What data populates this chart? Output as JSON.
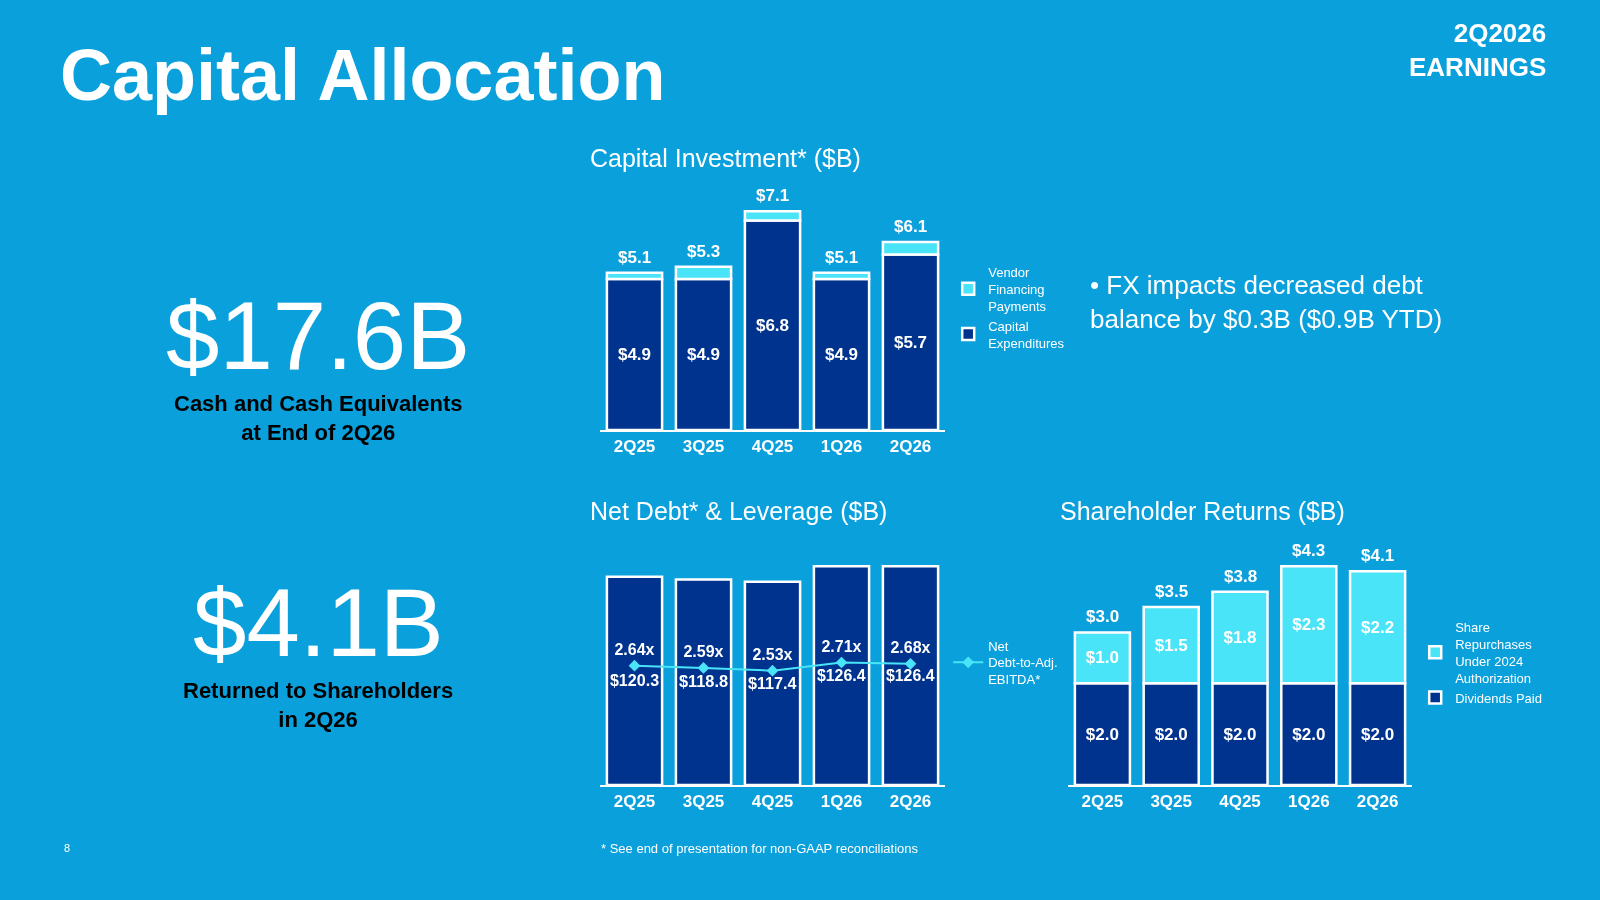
{
  "chart_data": [
    {
      "type": "other",
      "title": "Capital Allocation",
      "annotations": [
        "2Q2026 EARNINGS",
        "$17.6B",
        "Cash and Cash Equivalents at End of 2Q26",
        "$4.1B",
        "Returned to Shareholders in 2Q26",
        "• FX impacts decreased debt balance by $0.3B ($0.9B YTD)",
        "* See end of presentation for non-GAAP reconciliations",
        "8"
      ]
    },
    {
      "type": "bar",
      "title": "Capital Investment* ($B)",
      "stacked": true,
      "legend": "right",
      "tick_labels": "x",
      "grid": false,
      "categories": [
        "2Q25",
        "3Q25",
        "4Q25",
        "1Q26",
        "2Q26"
      ],
      "series": [
        {
          "name": "Capital Expenditures",
          "color": "#00338d",
          "values": [
            4.9,
            4.9,
            6.8,
            4.9,
            5.7
          ],
          "value_labels": [
            "$4.9",
            "$4.9",
            "$6.8",
            "$4.9",
            "$5.7"
          ]
        },
        {
          "name": "Vendor Financing Payments",
          "color": "#4ae4f9",
          "values": [
            0.2,
            0.4,
            0.3,
            0.2,
            0.4
          ]
        }
      ],
      "totals": [
        "$5.1",
        "$5.3",
        "$7.1",
        "$5.1",
        "$6.1"
      ]
    },
    {
      "type": "bar",
      "title": "Net Debt* & Leverage ($B)",
      "legend": "right",
      "tick_labels": "x",
      "grid": false,
      "categories": [
        "2Q25",
        "3Q25",
        "4Q25",
        "1Q26",
        "2Q26"
      ],
      "series": [
        {
          "color": "#00338d",
          "values": [
            120.3,
            118.8,
            117.4,
            126.4,
            126.4
          ],
          "value_labels": [
            "$120.3",
            "$118.8",
            "$117.4",
            "$126.4",
            "$126.4"
          ]
        },
        {
          "type": "line",
          "axis": "y2",
          "name": "Net Debt-to-Adj. EBITDA*",
          "color": "#4ae4f9",
          "marker": "diamond",
          "line_style": "solid",
          "values": [
            2.64,
            2.59,
            2.53,
            2.71,
            2.68
          ],
          "value_labels": [
            "2.64x",
            "2.59x",
            "2.53x",
            "2.71x",
            "2.68x"
          ]
        }
      ]
    },
    {
      "type": "bar",
      "title": "Shareholder Returns ($B)",
      "stacked": true,
      "legend": "right",
      "tick_labels": "x",
      "grid": false,
      "categories": [
        "2Q25",
        "3Q25",
        "4Q25",
        "1Q26",
        "2Q26"
      ],
      "series": [
        {
          "name": "Dividends Paid",
          "color": "#00338d",
          "values": [
            2.0,
            2.0,
            2.0,
            2.0,
            2.0
          ],
          "value_labels": [
            "$2.0",
            "$2.0",
            "$2.0",
            "$2.0",
            "$2.0"
          ]
        },
        {
          "name": "Share Repurchases Under 2024 Authorization",
          "color": "#4ae4f9",
          "values": [
            1.0,
            1.5,
            1.8,
            2.3,
            2.2
          ],
          "value_labels": [
            "$1.0",
            "$1.5",
            "$1.8",
            "$2.3",
            "$2.2"
          ]
        }
      ],
      "totals": [
        "$3.0",
        "$3.5",
        "$3.8",
        "$4.3",
        "$4.1"
      ]
    }
  ]
}
